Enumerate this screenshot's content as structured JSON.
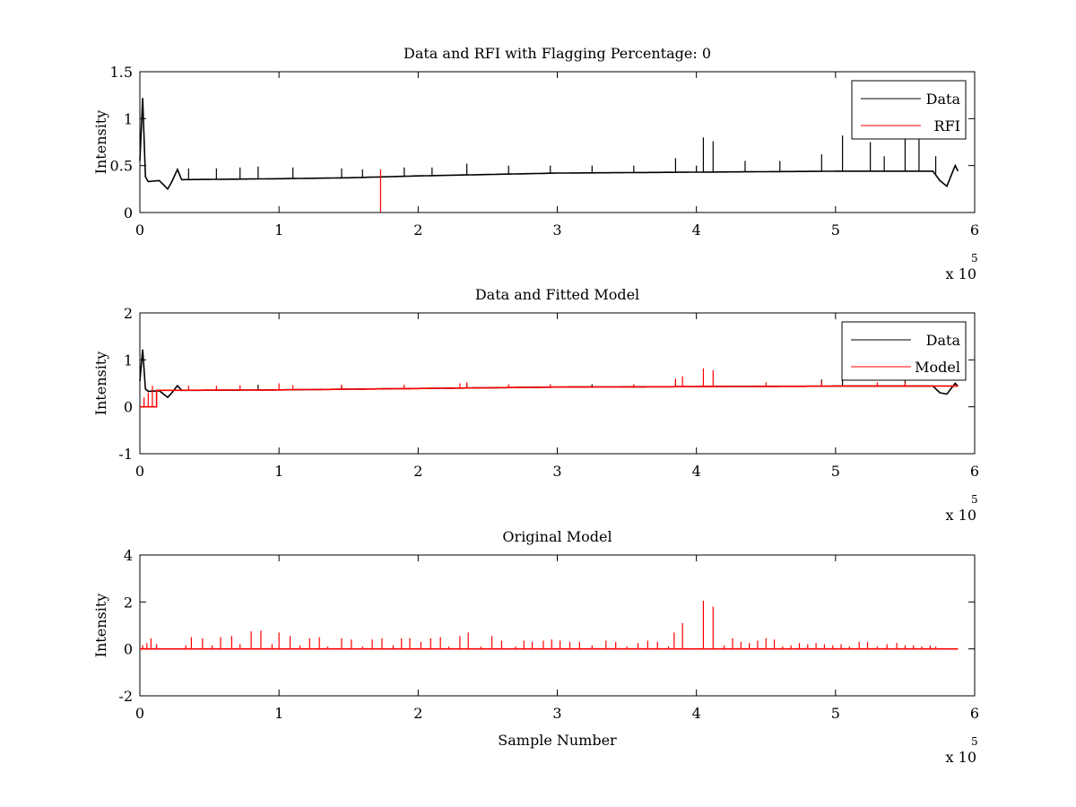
{
  "colors": {
    "data": "#000000",
    "rfi": "#ff0000",
    "model": "#ff0000",
    "axes": "#000000",
    "background": "#ffffff"
  },
  "chart_data": [
    {
      "type": "line",
      "title": "Data and RFI with Flagging Percentage: 0",
      "xlabel": "",
      "ylabel": "Intensity",
      "xlim": [
        0,
        6
      ],
      "ylim": [
        0,
        1.5
      ],
      "x_multiplier_label": "x 10",
      "x_multiplier_exponent": "5",
      "xticks": [
        "0",
        "1",
        "2",
        "3",
        "4",
        "5",
        "6"
      ],
      "yticks": [
        "0",
        "0.5",
        "1",
        "1.5"
      ],
      "ytick_values": [
        0,
        0.5,
        1,
        1.5
      ],
      "legend": {
        "placement": "top-right",
        "entries": [
          "Data",
          "RFI"
        ]
      },
      "grid": false,
      "series": [
        {
          "name": "Data",
          "color": "#000000",
          "baseline": [
            [
              0,
              0.55
            ],
            [
              0.02,
              1.22
            ],
            [
              0.04,
              0.38
            ],
            [
              0.06,
              0.33
            ],
            [
              0.14,
              0.34
            ],
            [
              0.2,
              0.25
            ],
            [
              0.23,
              0.33
            ],
            [
              0.27,
              0.46
            ],
            [
              0.3,
              0.35
            ],
            [
              1,
              0.36
            ],
            [
              1.5,
              0.37
            ],
            [
              2,
              0.39
            ],
            [
              3,
              0.42
            ],
            [
              4,
              0.43
            ],
            [
              5,
              0.44
            ],
            [
              5.7,
              0.44
            ],
            [
              5.75,
              0.34
            ],
            [
              5.8,
              0.28
            ],
            [
              5.86,
              0.5
            ],
            [
              5.88,
              0.44
            ]
          ],
          "spikes": [
            [
              0.35,
              0.47
            ],
            [
              0.55,
              0.47
            ],
            [
              0.72,
              0.48
            ],
            [
              0.85,
              0.49
            ],
            [
              1.1,
              0.48
            ],
            [
              1.45,
              0.47
            ],
            [
              1.6,
              0.46
            ],
            [
              1.9,
              0.48
            ],
            [
              2.1,
              0.48
            ],
            [
              2.35,
              0.52
            ],
            [
              2.65,
              0.5
            ],
            [
              2.95,
              0.5
            ],
            [
              3.25,
              0.5
            ],
            [
              3.55,
              0.5
            ],
            [
              3.85,
              0.58
            ],
            [
              4.0,
              0.5
            ],
            [
              4.05,
              0.8
            ],
            [
              4.12,
              0.76
            ],
            [
              4.35,
              0.55
            ],
            [
              4.6,
              0.55
            ],
            [
              4.9,
              0.62
            ],
            [
              5.05,
              0.82
            ],
            [
              5.25,
              0.75
            ],
            [
              5.35,
              0.6
            ],
            [
              5.5,
              0.8
            ],
            [
              5.6,
              0.78
            ],
            [
              5.72,
              0.6
            ]
          ]
        },
        {
          "name": "RFI",
          "color": "#ff0000",
          "baseline": [],
          "spikes": [
            [
              1.73,
              0.46
            ]
          ]
        }
      ]
    },
    {
      "type": "line",
      "title": "Data and Fitted Model",
      "xlabel": "",
      "ylabel": "Intensity",
      "xlim": [
        0,
        6
      ],
      "ylim": [
        -1,
        2
      ],
      "x_multiplier_label": "x 10",
      "x_multiplier_exponent": "5",
      "xticks": [
        "0",
        "1",
        "2",
        "3",
        "4",
        "5",
        "6"
      ],
      "yticks": [
        "-1",
        "0",
        "1",
        "2"
      ],
      "ytick_values": [
        -1,
        0,
        1,
        2
      ],
      "legend": {
        "placement": "top-right",
        "entries": [
          "Data",
          "Model"
        ]
      },
      "grid": false,
      "series": [
        {
          "name": "Data",
          "color": "#000000",
          "baseline": [
            [
              0,
              0.55
            ],
            [
              0.02,
              1.22
            ],
            [
              0.04,
              0.38
            ],
            [
              0.06,
              0.33
            ],
            [
              0.14,
              0.34
            ],
            [
              0.2,
              0.2
            ],
            [
              0.23,
              0.3
            ],
            [
              0.27,
              0.45
            ],
            [
              0.3,
              0.35
            ],
            [
              1,
              0.36
            ],
            [
              2,
              0.39
            ],
            [
              3,
              0.42
            ],
            [
              4,
              0.43
            ],
            [
              5,
              0.44
            ],
            [
              5.7,
              0.44
            ],
            [
              5.75,
              0.3
            ],
            [
              5.8,
              0.27
            ],
            [
              5.86,
              0.5
            ],
            [
              5.88,
              0.44
            ]
          ],
          "spikes": [
            [
              0.85,
              0.47
            ],
            [
              1.45,
              0.46
            ],
            [
              2.35,
              0.5
            ],
            [
              3.25,
              0.48
            ],
            [
              3.85,
              0.55
            ],
            [
              4.9,
              0.58
            ],
            [
              5.05,
              0.6
            ],
            [
              5.5,
              0.6
            ]
          ]
        },
        {
          "name": "Model",
          "color": "#ff0000",
          "baseline": [
            [
              0,
              0.0
            ],
            [
              0.12,
              0.0
            ],
            [
              0.12,
              0.35
            ],
            [
              1,
              0.36
            ],
            [
              2,
              0.39
            ],
            [
              3,
              0.42
            ],
            [
              4,
              0.43
            ],
            [
              5,
              0.44
            ],
            [
              5.88,
              0.44
            ]
          ],
          "spikes": [
            [
              0.03,
              0.2
            ],
            [
              0.06,
              0.3
            ],
            [
              0.09,
              0.45
            ],
            [
              0.35,
              0.45
            ],
            [
              0.55,
              0.45
            ],
            [
              0.72,
              0.46
            ],
            [
              1.0,
              0.5
            ],
            [
              1.1,
              0.46
            ],
            [
              1.45,
              0.47
            ],
            [
              1.9,
              0.47
            ],
            [
              2.3,
              0.5
            ],
            [
              2.35,
              0.52
            ],
            [
              2.65,
              0.48
            ],
            [
              2.95,
              0.48
            ],
            [
              3.55,
              0.48
            ],
            [
              3.85,
              0.6
            ],
            [
              3.9,
              0.65
            ],
            [
              4.05,
              0.82
            ],
            [
              4.12,
              0.78
            ],
            [
              4.5,
              0.52
            ],
            [
              4.9,
              0.55
            ],
            [
              5.3,
              0.52
            ],
            [
              5.5,
              0.52
            ]
          ]
        }
      ]
    },
    {
      "type": "line",
      "title": "Original Model",
      "xlabel": "Sample Number",
      "ylabel": "Intensity",
      "xlim": [
        0,
        6
      ],
      "ylim": [
        -2,
        4
      ],
      "x_multiplier_label": "x 10",
      "x_multiplier_exponent": "5",
      "xticks": [
        "0",
        "1",
        "2",
        "3",
        "4",
        "5",
        "6"
      ],
      "yticks": [
        "-2",
        "0",
        "2",
        "4"
      ],
      "ytick_values": [
        -2,
        0,
        2,
        4
      ],
      "legend": null,
      "grid": false,
      "series": [
        {
          "color": "#ff0000",
          "baseline": [
            [
              0,
              0
            ],
            [
              5.88,
              0
            ]
          ],
          "spikes": [
            [
              0.02,
              0.15
            ],
            [
              0.05,
              0.25
            ],
            [
              0.08,
              0.45
            ],
            [
              0.12,
              0.2
            ],
            [
              0.33,
              0.15
            ],
            [
              0.37,
              0.5
            ],
            [
              0.45,
              0.45
            ],
            [
              0.52,
              0.15
            ],
            [
              0.58,
              0.5
            ],
            [
              0.66,
              0.55
            ],
            [
              0.72,
              0.2
            ],
            [
              0.8,
              0.75
            ],
            [
              0.87,
              0.78
            ],
            [
              0.95,
              0.2
            ],
            [
              1.0,
              0.7
            ],
            [
              1.08,
              0.55
            ],
            [
              1.15,
              0.15
            ],
            [
              1.22,
              0.45
            ],
            [
              1.29,
              0.5
            ],
            [
              1.35,
              0.1
            ],
            [
              1.45,
              0.45
            ],
            [
              1.52,
              0.4
            ],
            [
              1.6,
              0.1
            ],
            [
              1.67,
              0.4
            ],
            [
              1.74,
              0.45
            ],
            [
              1.82,
              0.15
            ],
            [
              1.88,
              0.45
            ],
            [
              1.94,
              0.45
            ],
            [
              2.02,
              0.3
            ],
            [
              2.09,
              0.45
            ],
            [
              2.16,
              0.5
            ],
            [
              2.22,
              0.1
            ],
            [
              2.3,
              0.55
            ],
            [
              2.36,
              0.7
            ],
            [
              2.45,
              0.1
            ],
            [
              2.53,
              0.55
            ],
            [
              2.6,
              0.35
            ],
            [
              2.7,
              0.1
            ],
            [
              2.76,
              0.35
            ],
            [
              2.82,
              0.3
            ],
            [
              2.9,
              0.35
            ],
            [
              2.96,
              0.4
            ],
            [
              3.02,
              0.35
            ],
            [
              3.09,
              0.3
            ],
            [
              3.16,
              0.3
            ],
            [
              3.25,
              0.15
            ],
            [
              3.35,
              0.35
            ],
            [
              3.42,
              0.3
            ],
            [
              3.5,
              0.1
            ],
            [
              3.58,
              0.25
            ],
            [
              3.65,
              0.35
            ],
            [
              3.72,
              0.3
            ],
            [
              3.8,
              0.1
            ],
            [
              3.84,
              0.7
            ],
            [
              3.9,
              1.1
            ],
            [
              4.05,
              2.05
            ],
            [
              4.12,
              1.8
            ],
            [
              4.2,
              0.15
            ],
            [
              4.26,
              0.45
            ],
            [
              4.32,
              0.3
            ],
            [
              4.38,
              0.25
            ],
            [
              4.44,
              0.35
            ],
            [
              4.5,
              0.45
            ],
            [
              4.56,
              0.4
            ],
            [
              4.62,
              0.1
            ],
            [
              4.68,
              0.15
            ],
            [
              4.74,
              0.25
            ],
            [
              4.8,
              0.2
            ],
            [
              4.86,
              0.25
            ],
            [
              4.92,
              0.2
            ],
            [
              4.98,
              0.15
            ],
            [
              5.04,
              0.2
            ],
            [
              5.1,
              0.1
            ],
            [
              5.17,
              0.3
            ],
            [
              5.23,
              0.3
            ],
            [
              5.3,
              0.1
            ],
            [
              5.37,
              0.2
            ],
            [
              5.44,
              0.25
            ],
            [
              5.5,
              0.15
            ],
            [
              5.56,
              0.15
            ],
            [
              5.62,
              0.1
            ],
            [
              5.68,
              0.15
            ],
            [
              5.72,
              0.1
            ]
          ]
        }
      ]
    }
  ]
}
